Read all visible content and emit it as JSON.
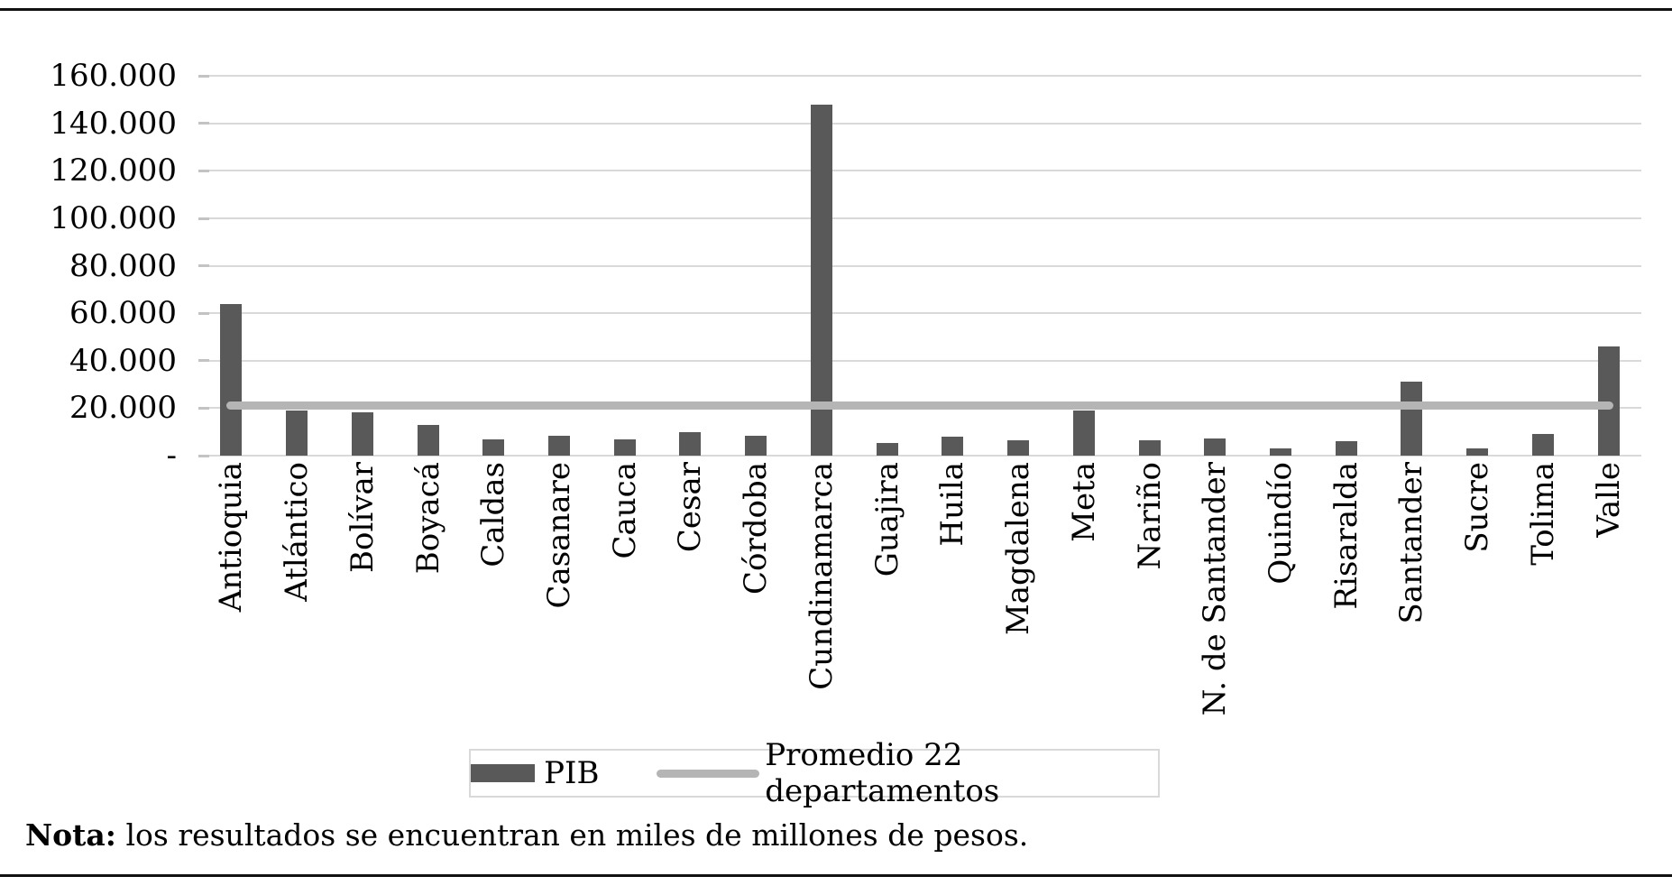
{
  "note": {
    "bold": "Nota:",
    "text": " los resultados se encuentran en miles de millones de pesos."
  },
  "legend": {
    "pib_label": "PIB",
    "promedio_label": "Promedio 22 departamentos"
  },
  "colors": {
    "bar": "#595959",
    "average_line": "#b5b5b5",
    "gridline": "#d9d9d9",
    "text": "#000000",
    "legend_border": "#d9d9d9"
  },
  "chart_data": {
    "type": "bar",
    "title": "",
    "xlabel": "",
    "ylabel": "",
    "ylim": [
      0,
      160000
    ],
    "grid": true,
    "legend_position": "bottom",
    "categories": [
      "Antioquia",
      "Atlántico",
      "Bolívar",
      "Boyacá",
      "Caldas",
      "Casanare",
      "Cauca",
      "Cesar",
      "Córdoba",
      "Cundinamarca",
      "Guajira",
      "Huila",
      "Magdalena",
      "Meta",
      "Nariño",
      "N. de Santander",
      "Quindío",
      "Risaralda",
      "Santander",
      "Sucre",
      "Tolima",
      "Valle"
    ],
    "series": [
      {
        "name": "PIB",
        "type": "bar",
        "color": "#595959",
        "values": [
          64000,
          19000,
          18200,
          13000,
          6700,
          8400,
          7000,
          9800,
          8500,
          148000,
          5500,
          8000,
          6300,
          19000,
          6500,
          7200,
          3200,
          6100,
          31200,
          3200,
          9200,
          46000
        ]
      },
      {
        "name": "Promedio 22 departamentos",
        "type": "line",
        "color": "#b5b5b5",
        "value": 21000
      }
    ],
    "yticks": [
      {
        "value": 0,
        "label": "-"
      },
      {
        "value": 20000,
        "label": "20.000"
      },
      {
        "value": 40000,
        "label": "40.000"
      },
      {
        "value": 60000,
        "label": "60.000"
      },
      {
        "value": 80000,
        "label": "80.000"
      },
      {
        "value": 100000,
        "label": "100.000"
      },
      {
        "value": 120000,
        "label": "120.000"
      },
      {
        "value": 140000,
        "label": "140.000"
      },
      {
        "value": 160000,
        "label": "160.000"
      }
    ]
  }
}
